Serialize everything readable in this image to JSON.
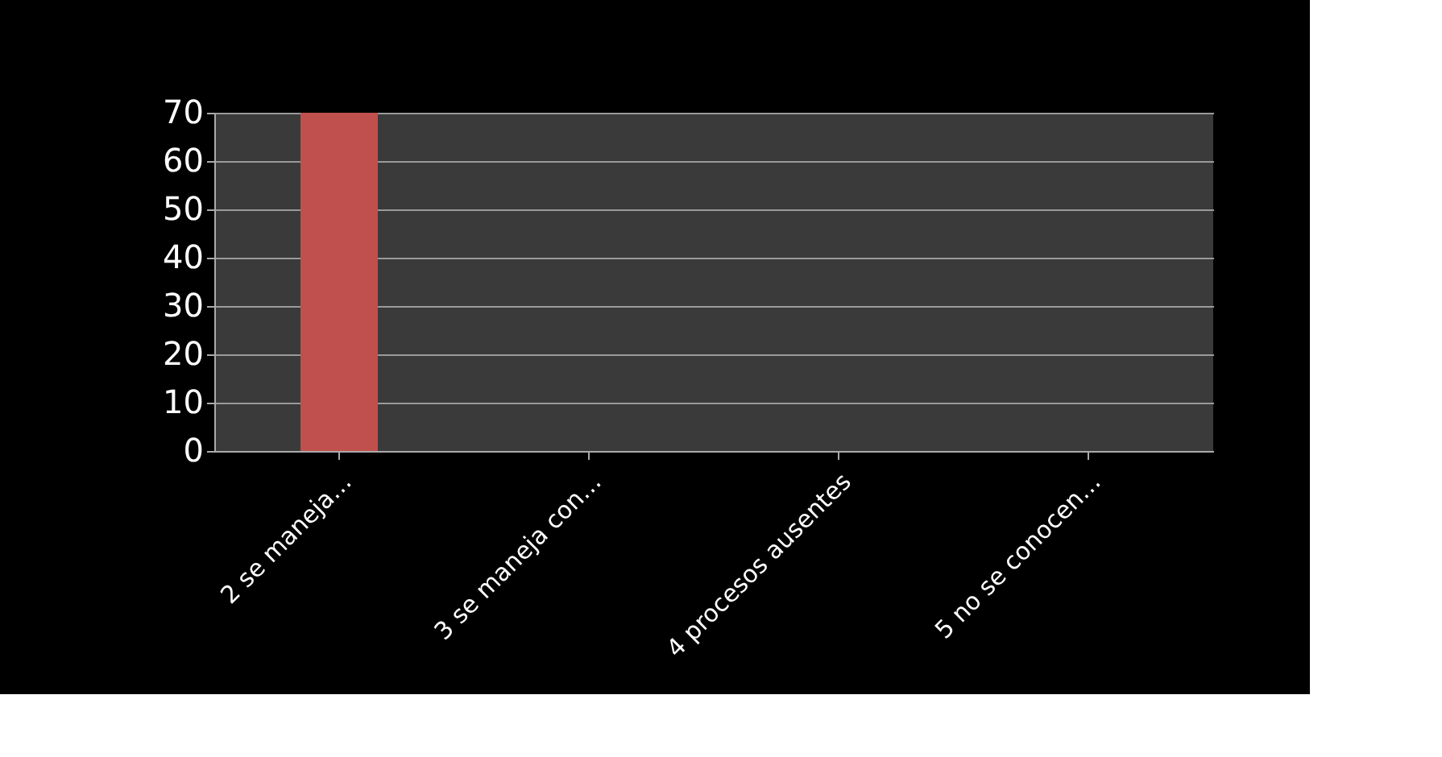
{
  "chart_data": {
    "type": "bar",
    "categories": [
      "2  se maneja…",
      "3  se maneja con…",
      "4  procesos   ausentes",
      "5  no se conocen…"
    ],
    "values": [
      70,
      0,
      0,
      0
    ],
    "color": "#c0504d",
    "ylim": [
      0,
      70
    ],
    "yticks": [
      0,
      10,
      20,
      30,
      40,
      50,
      60,
      70
    ],
    "grid": "y"
  }
}
